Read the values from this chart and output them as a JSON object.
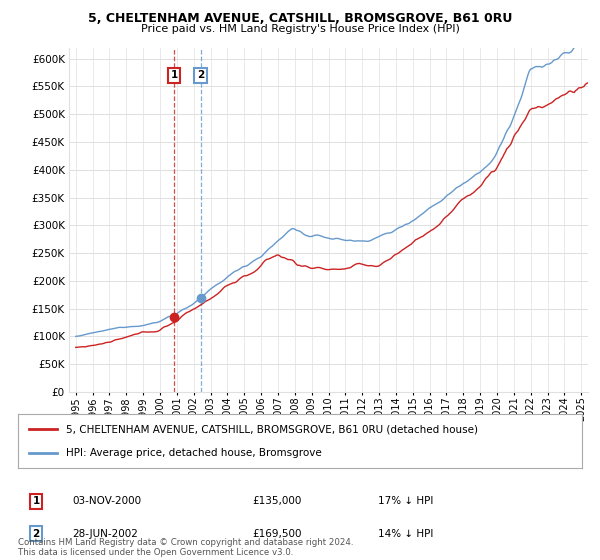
{
  "title": "5, CHELTENHAM AVENUE, CATSHILL, BROMSGROVE, B61 0RU",
  "subtitle": "Price paid vs. HM Land Registry's House Price Index (HPI)",
  "legend_line1": "5, CHELTENHAM AVENUE, CATSHILL, BROMSGROVE, B61 0RU (detached house)",
  "legend_line2": "HPI: Average price, detached house, Bromsgrove",
  "transaction1_date": "03-NOV-2000",
  "transaction1_price": 135000,
  "transaction1_pct": "17% ↓ HPI",
  "transaction2_date": "28-JUN-2002",
  "transaction2_price": 169500,
  "transaction2_pct": "14% ↓ HPI",
  "footer": "Contains HM Land Registry data © Crown copyright and database right 2024.\nThis data is licensed under the Open Government Licence v3.0.",
  "hpi_color": "#6699cc",
  "price_color": "#cc2222",
  "ylim_max": 620000,
  "yticks": [
    0,
    50000,
    100000,
    150000,
    200000,
    250000,
    300000,
    350000,
    400000,
    450000,
    500000,
    550000,
    600000
  ],
  "background_color": "#ffffff",
  "grid_color": "#e0e0e0"
}
